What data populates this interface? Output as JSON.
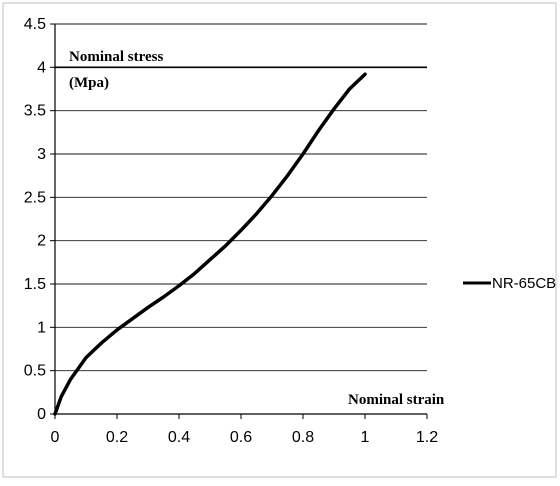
{
  "chart_data": {
    "type": "line",
    "title": "",
    "xlabel": "Nominal strain",
    "ylabel": "Nominal stress",
    "ylabel_unit": "(Mpa)",
    "xlim": [
      0,
      1.2
    ],
    "ylim": [
      0,
      4.5
    ],
    "x_ticks": [
      "0",
      "0.2",
      "0.4",
      "0.6",
      "0.8",
      "1",
      "1.2"
    ],
    "y_ticks": [
      "0",
      "0.5",
      "1",
      "1.5",
      "2",
      "2.5",
      "3",
      "3.5",
      "4",
      "4.5"
    ],
    "grid": "horizontal",
    "legend_position": "right",
    "series": [
      {
        "name": "NR-65CB",
        "color": "#000000",
        "x": [
          0,
          0.02,
          0.05,
          0.08,
          0.1,
          0.15,
          0.2,
          0.25,
          0.3,
          0.35,
          0.4,
          0.45,
          0.5,
          0.55,
          0.6,
          0.65,
          0.7,
          0.75,
          0.8,
          0.85,
          0.9,
          0.95,
          1.0
        ],
        "y": [
          0,
          0.2,
          0.4,
          0.55,
          0.65,
          0.82,
          0.97,
          1.1,
          1.23,
          1.35,
          1.48,
          1.62,
          1.78,
          1.94,
          2.12,
          2.31,
          2.52,
          2.75,
          3.0,
          3.27,
          3.52,
          3.75,
          3.92
        ]
      }
    ]
  }
}
